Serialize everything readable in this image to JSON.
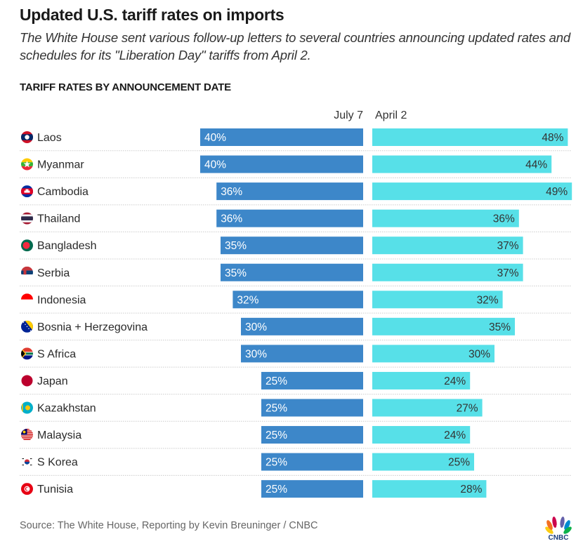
{
  "header": {
    "title": "Updated U.S. tariff rates on imports",
    "subtitle": "The White House sent various follow-up letters to several countries announcing updated rates and schedules for its \"Liberation Day\" tariffs from April 2.",
    "section_label": "TARIFF RATES BY ANNOUNCEMENT DATE"
  },
  "footer": {
    "source": "Source: The White House, Reporting by Kevin Breuninger / CNBC",
    "logo_text": "CNBC"
  },
  "colors": {
    "july7_bar": "#3d87c9",
    "april2_bar": "#57e0e8",
    "july7_label": "#ffffff",
    "april2_label": "#333333",
    "gridline": "#cccccc"
  },
  "chart_data": {
    "type": "bar",
    "orientation": "horizontal-diverging",
    "title": "TARIFF RATES BY ANNOUNCEMENT DATE",
    "value_unit": "%",
    "categories": [
      "Laos",
      "Myanmar",
      "Cambodia",
      "Thailand",
      "Bangladesh",
      "Serbia",
      "Indonesia",
      "Bosnia + Herzegovina",
      "S Africa",
      "Japan",
      "Kazakhstan",
      "Malaysia",
      "S Korea",
      "Tunisia"
    ],
    "flags": [
      "laos-flag",
      "myanmar-flag",
      "cambodia-flag",
      "thailand-flag",
      "bangladesh-flag",
      "serbia-flag",
      "indonesia-flag",
      "bosnia-flag",
      "south-africa-flag",
      "japan-flag",
      "kazakhstan-flag",
      "malaysia-flag",
      "south-korea-flag",
      "tunisia-flag"
    ],
    "series": [
      {
        "name": "July 7",
        "direction": "left",
        "values": [
          40,
          40,
          36,
          36,
          35,
          35,
          32,
          30,
          30,
          25,
          25,
          25,
          25,
          25
        ]
      },
      {
        "name": "April 2",
        "direction": "right",
        "values": [
          48,
          44,
          49,
          36,
          37,
          37,
          32,
          35,
          30,
          24,
          27,
          24,
          25,
          28
        ]
      }
    ],
    "xlim": [
      0,
      50
    ],
    "grid": false,
    "row_separators": "dotted"
  }
}
